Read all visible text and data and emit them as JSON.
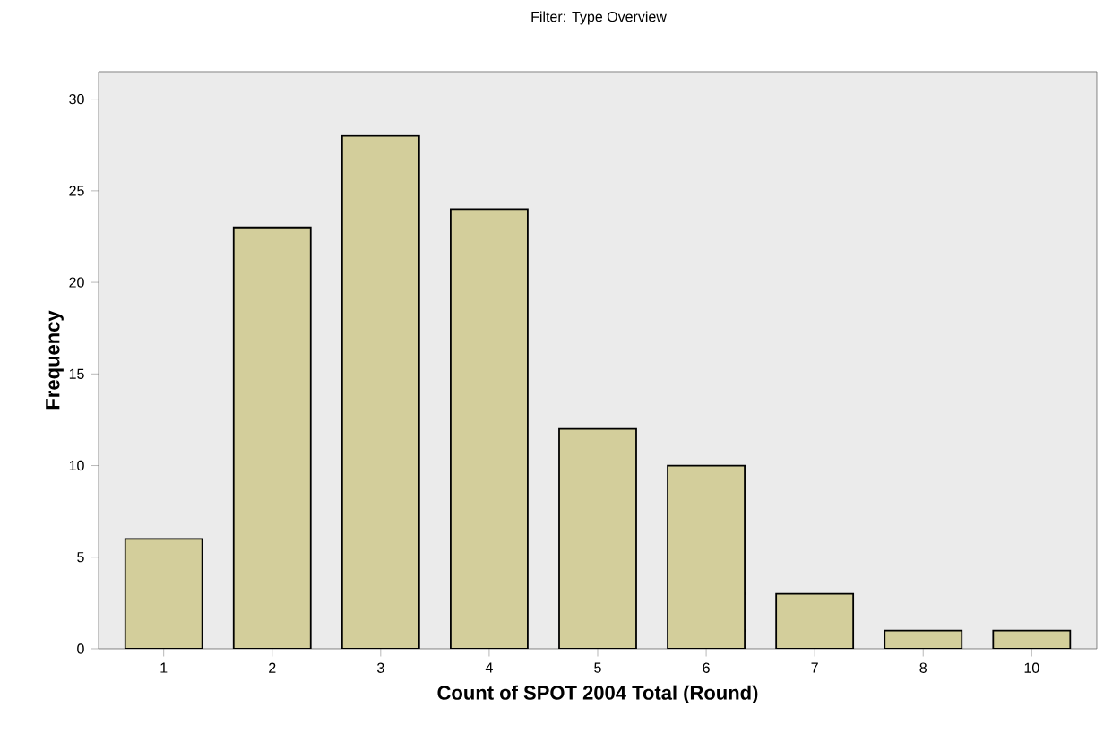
{
  "chart_data": {
    "type": "bar",
    "title": "Filter: Type Overview",
    "xlabel": "Count of SPOT 2004 Total (Round)",
    "ylabel": "Frequency",
    "categories": [
      "1",
      "2",
      "3",
      "4",
      "5",
      "6",
      "7",
      "8",
      "10"
    ],
    "values": [
      6,
      23,
      28,
      24,
      12,
      10,
      3,
      1,
      1
    ],
    "color": "#d3ce9b",
    "ylim": [
      0,
      31.5
    ],
    "yticks": [
      0,
      5,
      10,
      15,
      20,
      25,
      30
    ],
    "grid": false
  }
}
